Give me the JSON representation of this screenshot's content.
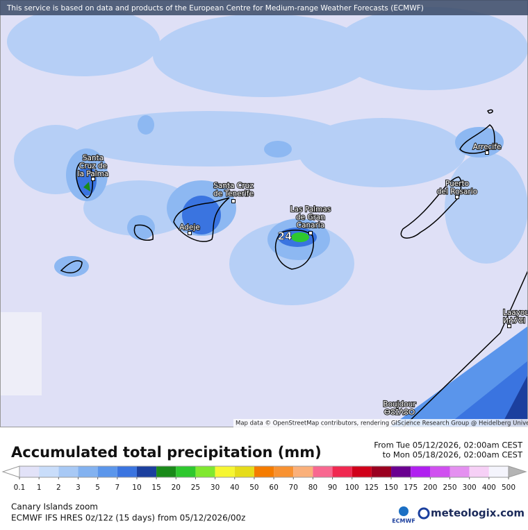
{
  "header": {
    "notice": "This service is based on data and products of the European Centre for Medium-range Weather Forecasts (ECMWF)"
  },
  "map": {
    "places": [
      {
        "lines": [
          "Santa",
          "Cruz de",
          "la Palma"
        ]
      },
      {
        "lines": [
          "Santa Cruz",
          "de Tenerife"
        ]
      },
      {
        "lines": [
          "Adeje"
        ]
      },
      {
        "lines": [
          "Las Palmas",
          "de Gran",
          "Canaria"
        ]
      },
      {
        "lines": [
          "Puerto",
          "del Rosario"
        ]
      },
      {
        "lines": [
          "Arrecife"
        ]
      },
      {
        "lines": [
          "Laayoune",
          "ⵍⵄⵢⵓⵏ"
        ]
      },
      {
        "lines": [
          "Boujdour",
          "ⴱⵓⵊⴷⵓⵔ"
        ]
      }
    ],
    "max_label": "24",
    "attribution": "Map data © OpenStreetMap contributors, rendering GIScience Research Group @ Heidelberg University"
  },
  "legend": {
    "title": "Accumulated total precipitation (mm)",
    "period_from": "From Tue 05/12/2026, 02:00am CEST",
    "period_to": "to Mon 05/18/2026, 02:00am CEST",
    "ticks": [
      0.1,
      1,
      2,
      3,
      5,
      7,
      10,
      15,
      20,
      25,
      30,
      40,
      50,
      60,
      70,
      80,
      90,
      100,
      125,
      150,
      175,
      200,
      250,
      300,
      400,
      500
    ],
    "under_color": "#ffffff",
    "colors": [
      "#e2e2f8",
      "#c9ddfa",
      "#a8c9f5",
      "#83b2f0",
      "#5b96eb",
      "#3a74e0",
      "#1b3f9e",
      "#1a8a1a",
      "#2ec82e",
      "#80e830",
      "#f6f632",
      "#e6dc1a",
      "#f57c00",
      "#f89232",
      "#fab07a",
      "#f86890",
      "#f02850",
      "#d0001a",
      "#9a0020",
      "#6a0090",
      "#b020f0",
      "#d050f0",
      "#e490f0",
      "#f6d0f6",
      "#f4f4fc"
    ],
    "over_color": "#b4b4b4"
  },
  "footer": {
    "region": "Canary Islands zoom",
    "model": "ECMWF IFS HRES 0z/12z (15 days) from 05/12/2026/00z",
    "ecmwf_logo": "ECMWF",
    "brand": "meteologix.com"
  }
}
